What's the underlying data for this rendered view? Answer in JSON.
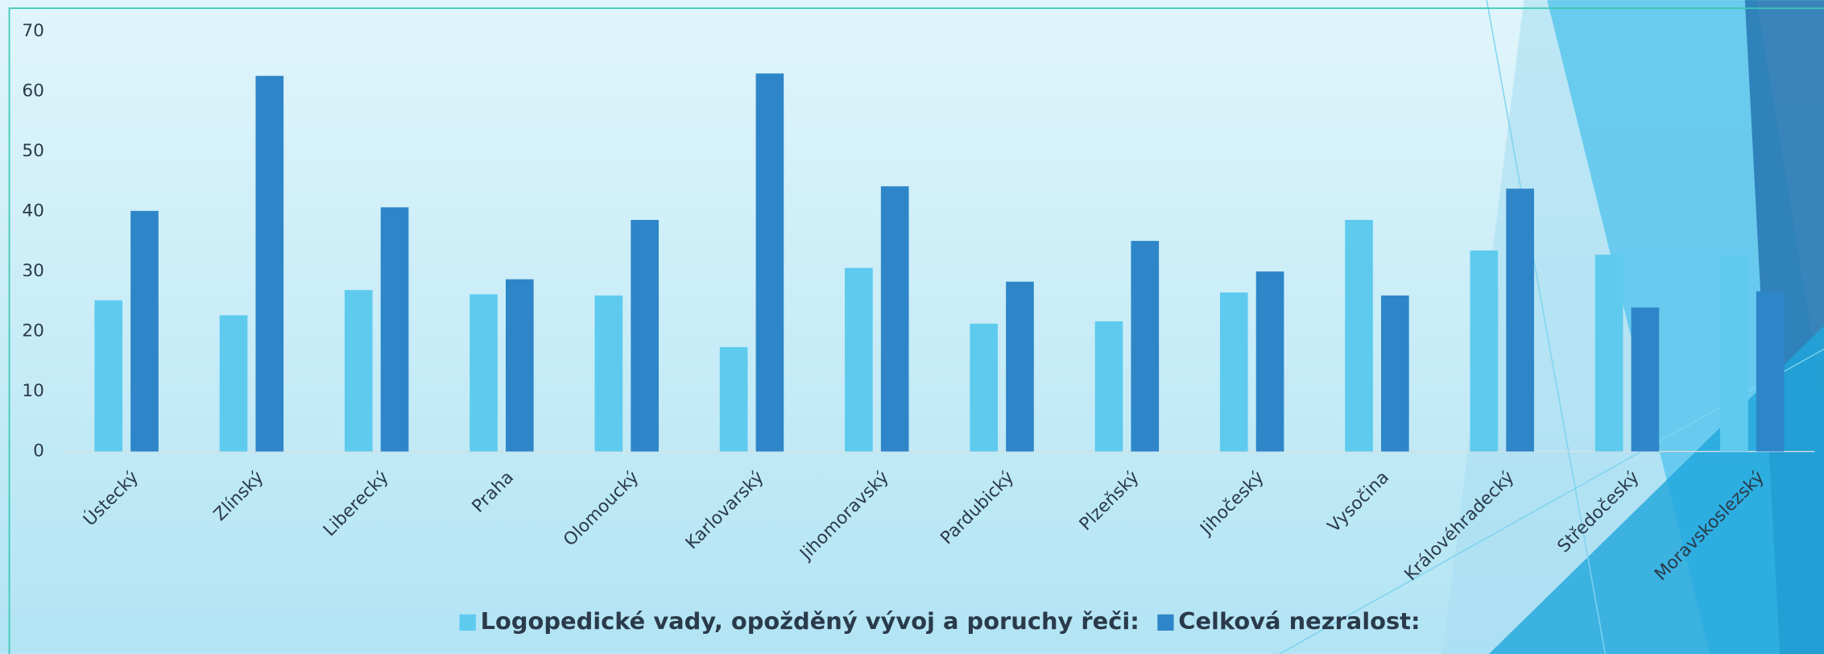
{
  "chart_data": {
    "type": "bar",
    "categories": [
      "Ústecký",
      "Zlínský",
      "Liberecký",
      "Praha",
      "Olomoucký",
      "Karlovarský",
      "Jihomoravský",
      "Pardubický",
      "Plzeňský",
      "Jihočeský",
      "Vysočina",
      "Královéhradecký",
      "Středočeský",
      "Moravskoslezský"
    ],
    "series": [
      {
        "name": "Logopedické vady, opožděný vývoj a poruchy řeči:",
        "color": "#5ecbee",
        "values": [
          25.2,
          22.7,
          26.9,
          26.2,
          26,
          17.4,
          30.6,
          21.3,
          21.7,
          26.5,
          38.6,
          33.5,
          32.8,
          32.6
        ]
      },
      {
        "name": "Celková nezralost:",
        "color": "#2e86c8",
        "values": [
          40.1,
          62.6,
          40.7,
          28.7,
          38.6,
          63,
          44.2,
          28.3,
          35.1,
          30,
          26,
          43.8,
          24,
          26.7
        ]
      }
    ],
    "ylim": [
      0,
      70
    ],
    "yticks": [
      0,
      10,
      20,
      30,
      40,
      50,
      60,
      70
    ],
    "legend": "bottom"
  }
}
